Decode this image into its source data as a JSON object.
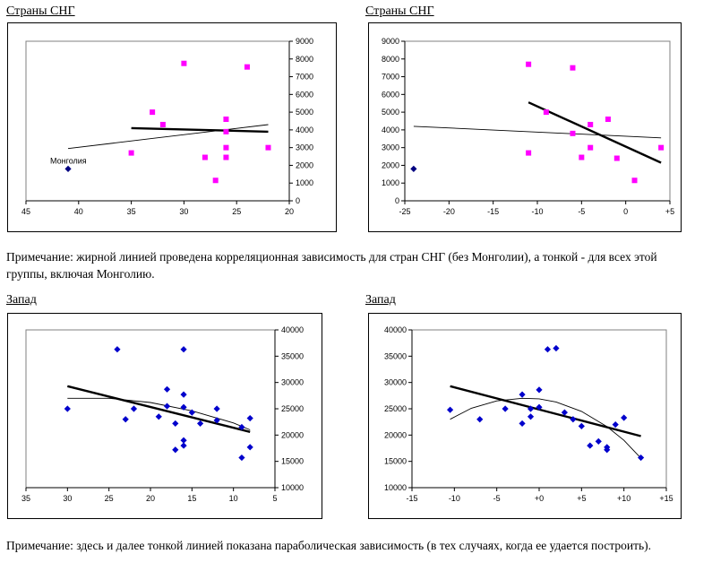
{
  "headings": {
    "top_left": "Страны СНГ",
    "top_right": "Страны СНГ",
    "bottom_left": "Запад",
    "bottom_right": "Запад"
  },
  "notes": {
    "first": "Примечание: жирной линией проведена корреляционная зависимость для стран СНГ (без Монголии), а тонкой - для всех этой группы, включая Монголию.",
    "second": "Примечание: здесь и далее тонкой линией показана параболическая зависимость (в тех случаях, когда ее удается построить)."
  },
  "colors": {
    "cis_points": "#ff00ff",
    "mongolia_point": "#000080",
    "west_points": "#0000cc",
    "lines": "#000000"
  },
  "chart_data": [
    {
      "type": "scatter",
      "title": "Страны СНГ",
      "x_reversed": true,
      "xlim": [
        45,
        20
      ],
      "ylim": [
        0,
        9000
      ],
      "x_ticks": [
        "45",
        "40",
        "35",
        "30",
        "25",
        "20"
      ],
      "x_tick_values": [
        45,
        40,
        35,
        30,
        25,
        20
      ],
      "y_ticks": [
        "0",
        "1000",
        "2000",
        "3000",
        "4000",
        "5000",
        "6000",
        "7000",
        "8000",
        "9000"
      ],
      "y_tick_values": [
        0,
        1000,
        2000,
        3000,
        4000,
        5000,
        6000,
        7000,
        8000,
        9000
      ],
      "y_axis_side": "right",
      "series": [
        {
          "marker": "square",
          "color": "#ff00ff",
          "points": [
            [
              30,
              7750
            ],
            [
              24,
              7550
            ],
            [
              33,
              5000
            ],
            [
              26,
              4600
            ],
            [
              32,
              4300
            ],
            [
              26,
              3900
            ],
            [
              26,
              3000
            ],
            [
              22,
              3000
            ],
            [
              35,
              2700
            ],
            [
              28,
              2450
            ],
            [
              26,
              2450
            ],
            [
              27,
              1150
            ]
          ]
        },
        {
          "marker": "diamond",
          "color": "#000080",
          "points": [
            [
              41,
              1800
            ]
          ]
        }
      ],
      "annotations": [
        {
          "text": "Монголия",
          "x": 41,
          "y": 1800
        }
      ],
      "trendlines": [
        {
          "style": "bold",
          "points": [
            [
              35,
              4100
            ],
            [
              22,
              3900
            ]
          ]
        },
        {
          "style": "thin",
          "points": [
            [
              41,
              2950
            ],
            [
              22,
              4300
            ]
          ]
        }
      ]
    },
    {
      "type": "scatter",
      "title": "Страны СНГ",
      "xlim": [
        -25,
        5
      ],
      "ylim": [
        0,
        9000
      ],
      "x_ticks": [
        "-25",
        "-20",
        "-15",
        "-10",
        "-5",
        "0",
        "+5"
      ],
      "x_tick_values": [
        -25,
        -20,
        -15,
        -10,
        -5,
        0,
        5
      ],
      "y_ticks": [
        "0",
        "1000",
        "2000",
        "3000",
        "4000",
        "5000",
        "6000",
        "7000",
        "8000",
        "9000"
      ],
      "y_tick_values": [
        0,
        1000,
        2000,
        3000,
        4000,
        5000,
        6000,
        7000,
        8000,
        9000
      ],
      "y_axis_side": "left",
      "series": [
        {
          "marker": "square",
          "color": "#ff00ff",
          "points": [
            [
              -11,
              7700
            ],
            [
              -6,
              7500
            ],
            [
              -9,
              5000
            ],
            [
              -2,
              4600
            ],
            [
              -4,
              4300
            ],
            [
              -6,
              3800
            ],
            [
              -4,
              3000
            ],
            [
              4,
              3000
            ],
            [
              -11,
              2700
            ],
            [
              -5,
              2450
            ],
            [
              -1,
              2400
            ],
            [
              1,
              1150
            ]
          ]
        },
        {
          "marker": "diamond",
          "color": "#000080",
          "points": [
            [
              -24,
              1800
            ]
          ]
        }
      ],
      "trendlines": [
        {
          "style": "bold",
          "points": [
            [
              -11,
              5550
            ],
            [
              4,
              2150
            ]
          ]
        },
        {
          "style": "thin",
          "points": [
            [
              -24,
              4200
            ],
            [
              4,
              3550
            ]
          ]
        }
      ]
    },
    {
      "type": "scatter",
      "title": "Запад",
      "x_reversed": true,
      "xlim": [
        35,
        5
      ],
      "ylim": [
        10000,
        40000
      ],
      "x_ticks": [
        "35",
        "30",
        "25",
        "20",
        "15",
        "10",
        "5"
      ],
      "x_tick_values": [
        35,
        30,
        25,
        20,
        15,
        10,
        5
      ],
      "y_ticks": [
        "10000",
        "15000",
        "20000",
        "25000",
        "30000",
        "35000",
        "40000"
      ],
      "y_tick_values": [
        10000,
        15000,
        20000,
        25000,
        30000,
        35000,
        40000
      ],
      "y_axis_side": "right",
      "series": [
        {
          "marker": "diamond",
          "color": "#0000cc",
          "points": [
            [
              30,
              25000
            ],
            [
              24,
              36300
            ],
            [
              23,
              23000
            ],
            [
              22,
              25000
            ],
            [
              19,
              23500
            ],
            [
              18,
              28700
            ],
            [
              18,
              25500
            ],
            [
              17,
              22200
            ],
            [
              17,
              17200
            ],
            [
              16,
              36300
            ],
            [
              16,
              27700
            ],
            [
              16,
              25300
            ],
            [
              16,
              19000
            ],
            [
              16,
              18000
            ],
            [
              15,
              24300
            ],
            [
              14,
              22200
            ],
            [
              12,
              25000
            ],
            [
              12,
              22800
            ],
            [
              9,
              21500
            ],
            [
              9,
              15700
            ],
            [
              8,
              23200
            ],
            [
              8,
              17700
            ]
          ]
        }
      ],
      "trendlines": [
        {
          "style": "bold",
          "points": [
            [
              30,
              29300
            ],
            [
              8,
              20600
            ]
          ]
        },
        {
          "style": "thin",
          "points": [
            [
              30,
              27000
            ],
            [
              25,
              27000
            ],
            [
              20,
              26200
            ],
            [
              15,
              24600
            ],
            [
              10,
              22300
            ],
            [
              8,
              21000
            ]
          ]
        }
      ]
    },
    {
      "type": "scatter",
      "title": "Запад",
      "xlim": [
        -15,
        15
      ],
      "ylim": [
        10000,
        40000
      ],
      "x_ticks": [
        "-15",
        "-10",
        "-5",
        "+0",
        "+5",
        "+10",
        "+15"
      ],
      "x_tick_values": [
        -15,
        -10,
        -5,
        0,
        5,
        10,
        15
      ],
      "y_ticks": [
        "10000",
        "15000",
        "20000",
        "25000",
        "30000",
        "35000",
        "40000"
      ],
      "y_tick_values": [
        10000,
        15000,
        20000,
        25000,
        30000,
        35000,
        40000
      ],
      "y_axis_side": "left",
      "series": [
        {
          "marker": "diamond",
          "color": "#0000cc",
          "points": [
            [
              -10.5,
              24800
            ],
            [
              -7,
              23000
            ],
            [
              -4,
              25000
            ],
            [
              -2,
              27700
            ],
            [
              -2,
              22200
            ],
            [
              -1,
              25000
            ],
            [
              -1,
              23500
            ],
            [
              0,
              28600
            ],
            [
              0,
              25300
            ],
            [
              1,
              36300
            ],
            [
              2,
              36500
            ],
            [
              3,
              24300
            ],
            [
              4,
              23000
            ],
            [
              5,
              21700
            ],
            [
              6,
              18000
            ],
            [
              7,
              18800
            ],
            [
              8,
              17700
            ],
            [
              8,
              17200
            ],
            [
              9,
              22000
            ],
            [
              10,
              23300
            ],
            [
              12,
              15700
            ]
          ]
        }
      ],
      "trendlines": [
        {
          "style": "bold",
          "points": [
            [
              -10.5,
              29300
            ],
            [
              12,
              19800
            ]
          ]
        },
        {
          "style": "thin",
          "points": [
            [
              -10.5,
              23000
            ],
            [
              -8,
              25100
            ],
            [
              -5,
              26500
            ],
            [
              -2,
              27000
            ],
            [
              0,
              26900
            ],
            [
              2,
              26300
            ],
            [
              5,
              24500
            ],
            [
              8,
              21600
            ],
            [
              10,
              19000
            ],
            [
              12,
              15600
            ]
          ]
        }
      ]
    }
  ]
}
